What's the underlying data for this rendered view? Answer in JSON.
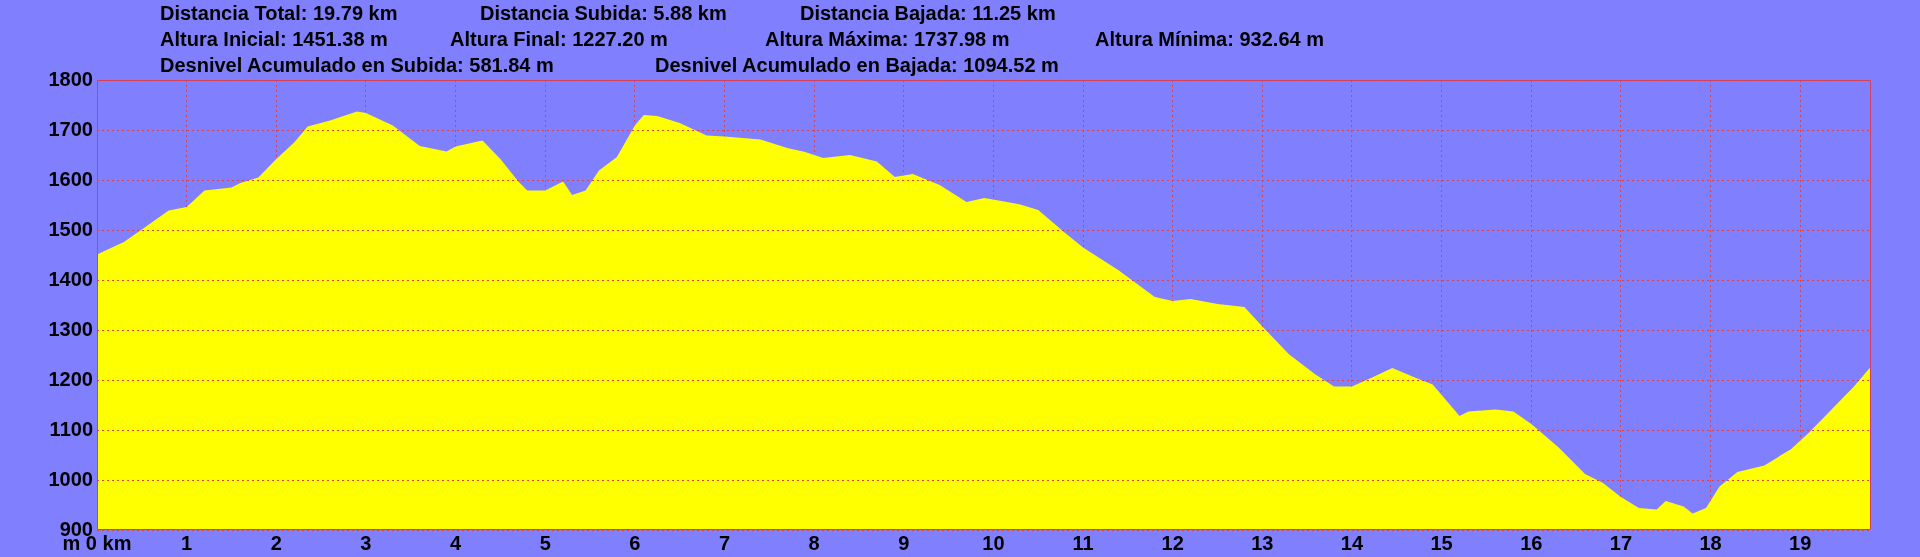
{
  "chart_data": {
    "type": "area",
    "annotations": [
      "Distancia Total: 19.79 km",
      "Distancia Subida: 5.88 km",
      "Distancia Bajada: 11.25 km",
      "Altura Inicial: 1451.38 m",
      "Altura Final: 1227.20 m",
      "Altura Máxima: 1737.98 m",
      "Altura Mínima: 932.64 m",
      "Desnivel Acumulado en Subida: 581.84 m",
      "Desnivel Acumulado en Bajada: 1094.52 m"
    ],
    "x": [
      0,
      0.3,
      0.5,
      0.8,
      1.0,
      1.2,
      1.5,
      1.6,
      1.8,
      2.0,
      2.2,
      2.35,
      2.6,
      2.9,
      3.0,
      3.3,
      3.6,
      3.9,
      4.0,
      4.3,
      4.5,
      4.7,
      4.8,
      5.0,
      5.2,
      5.3,
      5.45,
      5.6,
      5.8,
      6.0,
      6.1,
      6.25,
      6.5,
      6.8,
      7.0,
      7.4,
      7.7,
      7.9,
      8.1,
      8.4,
      8.7,
      8.9,
      9.1,
      9.4,
      9.7,
      9.9,
      10.3,
      10.5,
      10.8,
      11.0,
      11.4,
      11.8,
      12.0,
      12.2,
      12.5,
      12.8,
      13.0,
      13.3,
      13.6,
      13.8,
      14.0,
      14.2,
      14.45,
      14.7,
      14.9,
      15.2,
      15.3,
      15.6,
      15.8,
      16.0,
      16.3,
      16.6,
      16.8,
      17.0,
      17.2,
      17.4,
      17.5,
      17.7,
      17.8,
      17.95,
      18.1,
      18.3,
      18.6,
      18.9,
      19.1,
      19.35,
      19.6,
      19.79
    ],
    "values": [
      1451,
      1476,
      1501,
      1539,
      1546,
      1579,
      1585,
      1594,
      1605,
      1642,
      1675,
      1707,
      1719,
      1737,
      1734,
      1709,
      1668,
      1657,
      1667,
      1679,
      1642,
      1597,
      1579,
      1579,
      1597,
      1570,
      1579,
      1619,
      1646,
      1709,
      1730,
      1728,
      1714,
      1689,
      1687,
      1681,
      1664,
      1656,
      1644,
      1650,
      1637,
      1606,
      1612,
      1590,
      1556,
      1564,
      1551,
      1540,
      1494,
      1465,
      1419,
      1366,
      1358,
      1362,
      1352,
      1346,
      1307,
      1251,
      1210,
      1187,
      1187,
      1203,
      1224,
      1205,
      1191,
      1128,
      1137,
      1141,
      1137,
      1112,
      1066,
      1012,
      994,
      966,
      944,
      941,
      958,
      947,
      933,
      944,
      987,
      1016,
      1029,
      1062,
      1095,
      1141,
      1187,
      1227
    ],
    "color": "#ffff00",
    "xlim": [
      0,
      19.79
    ],
    "xticks": [
      {
        "value": 0,
        "label": "m 0 km"
      },
      1,
      2,
      3,
      4,
      5,
      6,
      7,
      8,
      9,
      10,
      11,
      12,
      13,
      14,
      15,
      16,
      17,
      18,
      19
    ],
    "ylim": [
      900,
      1800
    ],
    "yticks": [
      900,
      1000,
      1100,
      1200,
      1300,
      1400,
      1500,
      1600,
      1700,
      1800
    ],
    "grid": true
  }
}
